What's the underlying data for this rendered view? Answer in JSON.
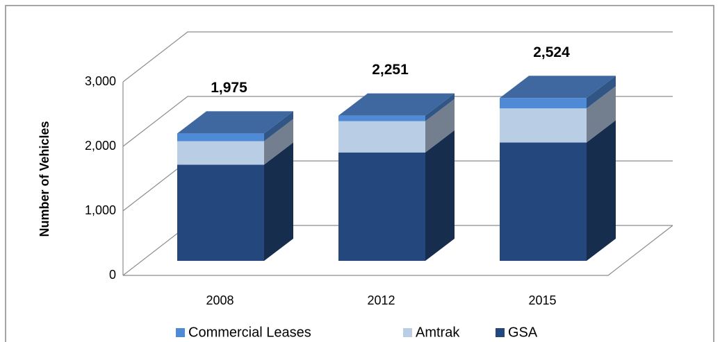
{
  "chart_data": {
    "type": "bar3d_stacked",
    "y_label": "Number of Vehicles",
    "categories": [
      "2008",
      "2012",
      "2015"
    ],
    "series": [
      {
        "name": "GSA",
        "color": "#24487e",
        "values": [
          1490,
          1680,
          1835
        ]
      },
      {
        "name": "Amtrak",
        "color": "#b9cde5",
        "values": [
          365,
          485,
          528
        ]
      },
      {
        "name": "Commercial Leases",
        "color": "#4f8ad6",
        "values": [
          120,
          86,
          161
        ]
      }
    ],
    "totals": [
      1975,
      2251,
      2524
    ],
    "value_labels": [
      "1,975",
      "2,251",
      "2,524"
    ],
    "ylim": [
      0,
      3000
    ],
    "yticks": [
      0,
      {
        "value": 1000,
        "label": "1,000"
      },
      {
        "value": 2000,
        "label": "2,000"
      },
      {
        "value": 3000,
        "label": "3,000"
      }
    ],
    "grid": true,
    "legend": "bottom",
    "legend_order": [
      2,
      1,
      0
    ]
  }
}
